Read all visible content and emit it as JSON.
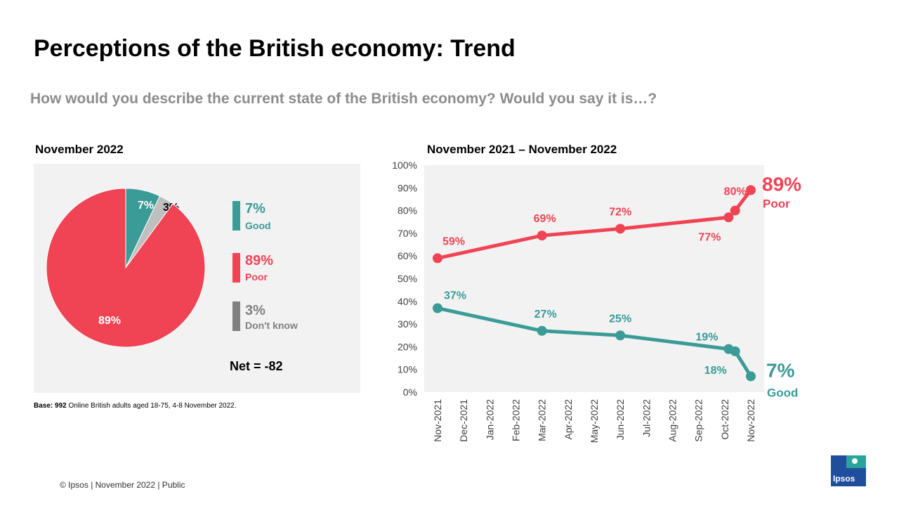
{
  "title": "Perceptions of the British economy: Trend",
  "question": "How would you describe the current state of the British economy? Would you say it is…?",
  "pie_section_label": "November 2022",
  "line_section_label": "November 2021 – November 2022",
  "colors": {
    "good": "#3a9b97",
    "poor": "#f04455",
    "dont_know": "#808080",
    "dont_know_slice": "#bfbfbf",
    "panel": "#f2f2f2"
  },
  "legend": [
    {
      "value": "7%",
      "label": "Good",
      "color": "#3a9b97"
    },
    {
      "value": "89%",
      "label": "Poor",
      "color": "#f04455"
    },
    {
      "value": "3%",
      "label": "Don't know",
      "color": "#808080"
    }
  ],
  "net_label": "Net = -82",
  "base_bold": "Base: 992",
  "base_rest": " Online British adults aged 18-75, 4-8 November 2022.",
  "footer": "© Ipsos | November  2022 | Public",
  "logo_text": "Ipsos",
  "chart_data": [
    {
      "type": "pie",
      "title": "November 2022",
      "labels": [
        "Good",
        "Don't know",
        "Poor"
      ],
      "values": [
        7,
        3,
        89
      ],
      "data_labels": [
        "7%",
        "3%",
        "89%"
      ]
    },
    {
      "type": "line",
      "title": "November 2021 – November 2022",
      "categories": [
        "Nov-2021",
        "Dec-2021",
        "Jan-2022",
        "Feb-2022",
        "Mar-2022",
        "Apr-2022",
        "May-2022",
        "Jun-2022",
        "Jul-2022",
        "Aug-2022",
        "Sep-2022",
        "Oct-2022",
        "Nov-2022"
      ],
      "yticks": [
        "0%",
        "10%",
        "20%",
        "30%",
        "40%",
        "50%",
        "60%",
        "70%",
        "80%",
        "90%",
        "100%"
      ],
      "ylim": [
        0,
        100
      ],
      "series": [
        {
          "name": "Poor",
          "color": "#f04455",
          "points": [
            {
              "x": 0,
              "y": 59,
              "label": "59%"
            },
            {
              "x": 4,
              "y": 69,
              "label": "69%"
            },
            {
              "x": 7,
              "y": 72,
              "label": "72%"
            },
            {
              "x": 11.15,
              "y": 77,
              "label": "77%"
            },
            {
              "x": 11.4,
              "y": 80,
              "label": "80%"
            },
            {
              "x": 12,
              "y": 89,
              "label": "89%"
            }
          ],
          "end_value": "89%",
          "end_name": "Poor"
        },
        {
          "name": "Good",
          "color": "#3a9b97",
          "points": [
            {
              "x": 0,
              "y": 37,
              "label": "37%"
            },
            {
              "x": 4,
              "y": 27,
              "label": "27%"
            },
            {
              "x": 7,
              "y": 25,
              "label": "25%"
            },
            {
              "x": 11.15,
              "y": 19,
              "label": "19%"
            },
            {
              "x": 11.4,
              "y": 18,
              "label": "18%"
            },
            {
              "x": 12,
              "y": 7,
              "label": "7%"
            }
          ],
          "end_value": "7%",
          "end_name": "Good"
        }
      ]
    }
  ]
}
